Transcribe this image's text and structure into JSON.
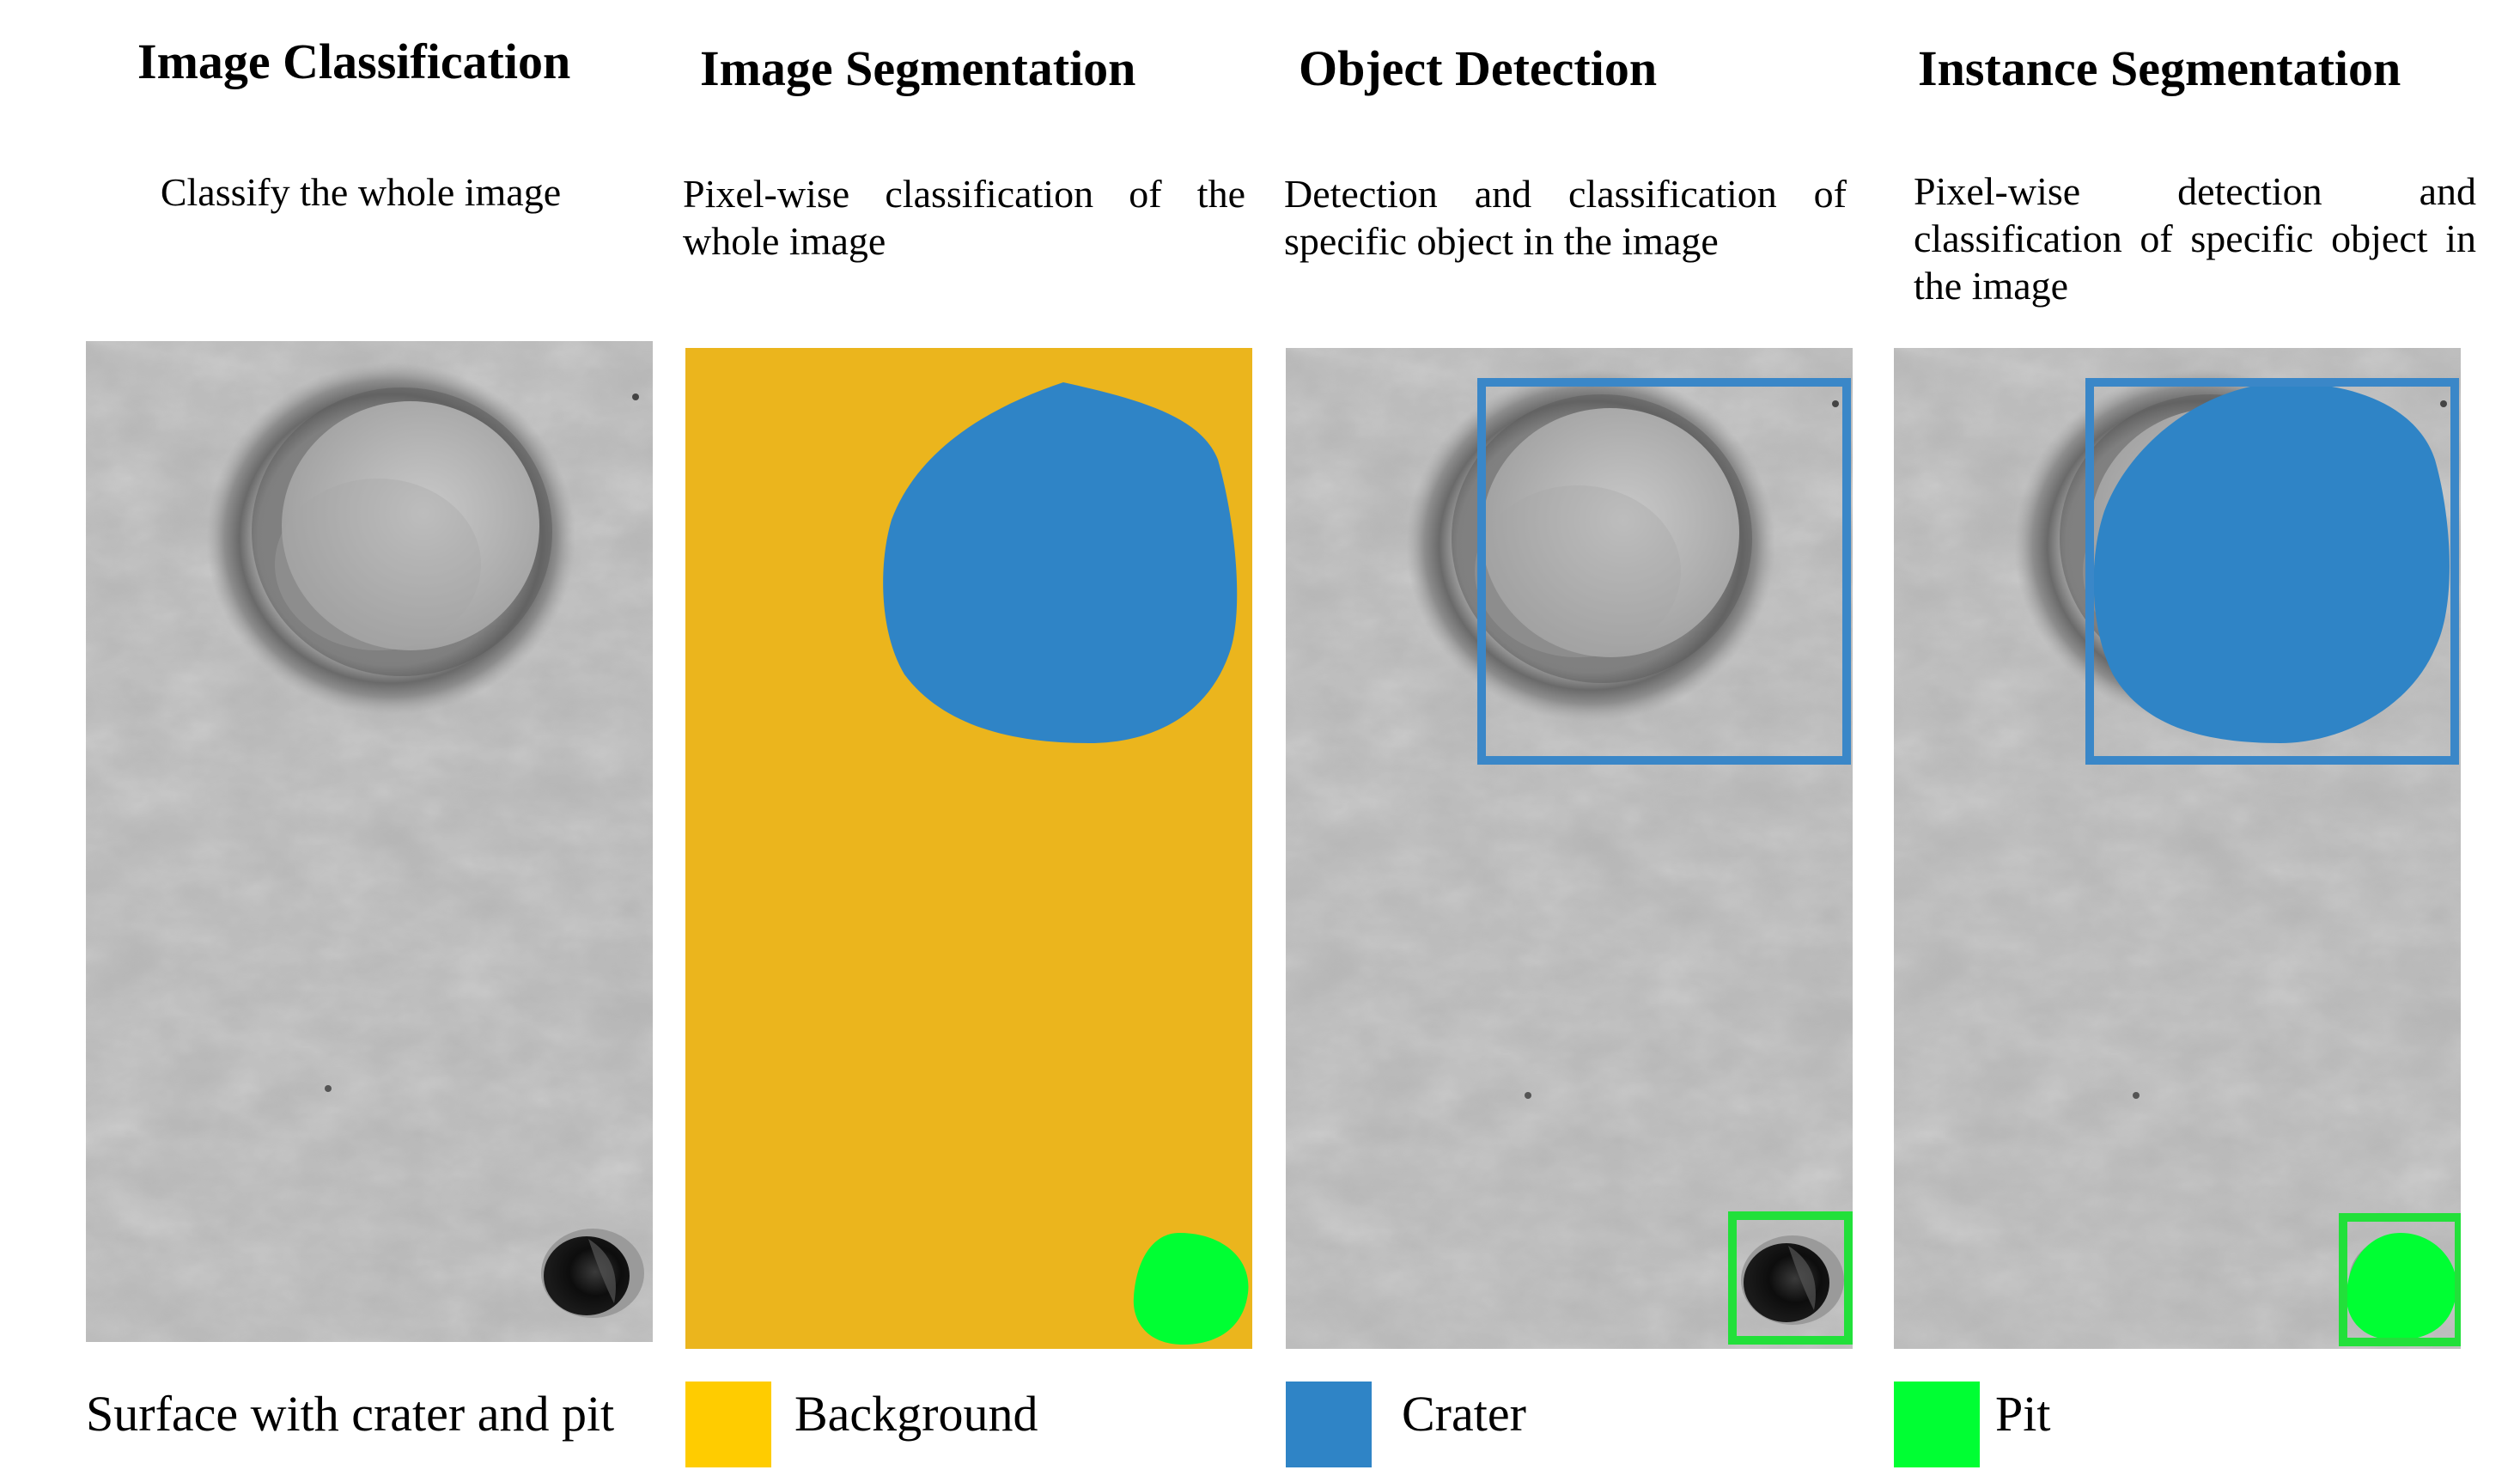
{
  "columns": [
    {
      "title": "Image Classification",
      "description": "Classify the whole image"
    },
    {
      "title": "Image Segmentation",
      "description": "Pixel-wise classification of the whole image"
    },
    {
      "title": "Object Detection",
      "description": "Detection and classification of specific object in the image"
    },
    {
      "title": "Instance Segmentation",
      "description": "Pixel-wise detection and classification of specific object in the image"
    }
  ],
  "classification_label": "Surface with crater and pit",
  "legend": [
    {
      "label": "Background",
      "color": "#FFCC00"
    },
    {
      "label": "Crater",
      "color": "#2F84C6"
    },
    {
      "label": "Pit",
      "color": "#00FF33"
    }
  ],
  "colors": {
    "segmentation_background": "#EBB51D",
    "crater_mask": "#2F84C6",
    "pit_mask": "#00FF33",
    "crater_box": "#3A87C8",
    "pit_box": "#22E03A"
  }
}
